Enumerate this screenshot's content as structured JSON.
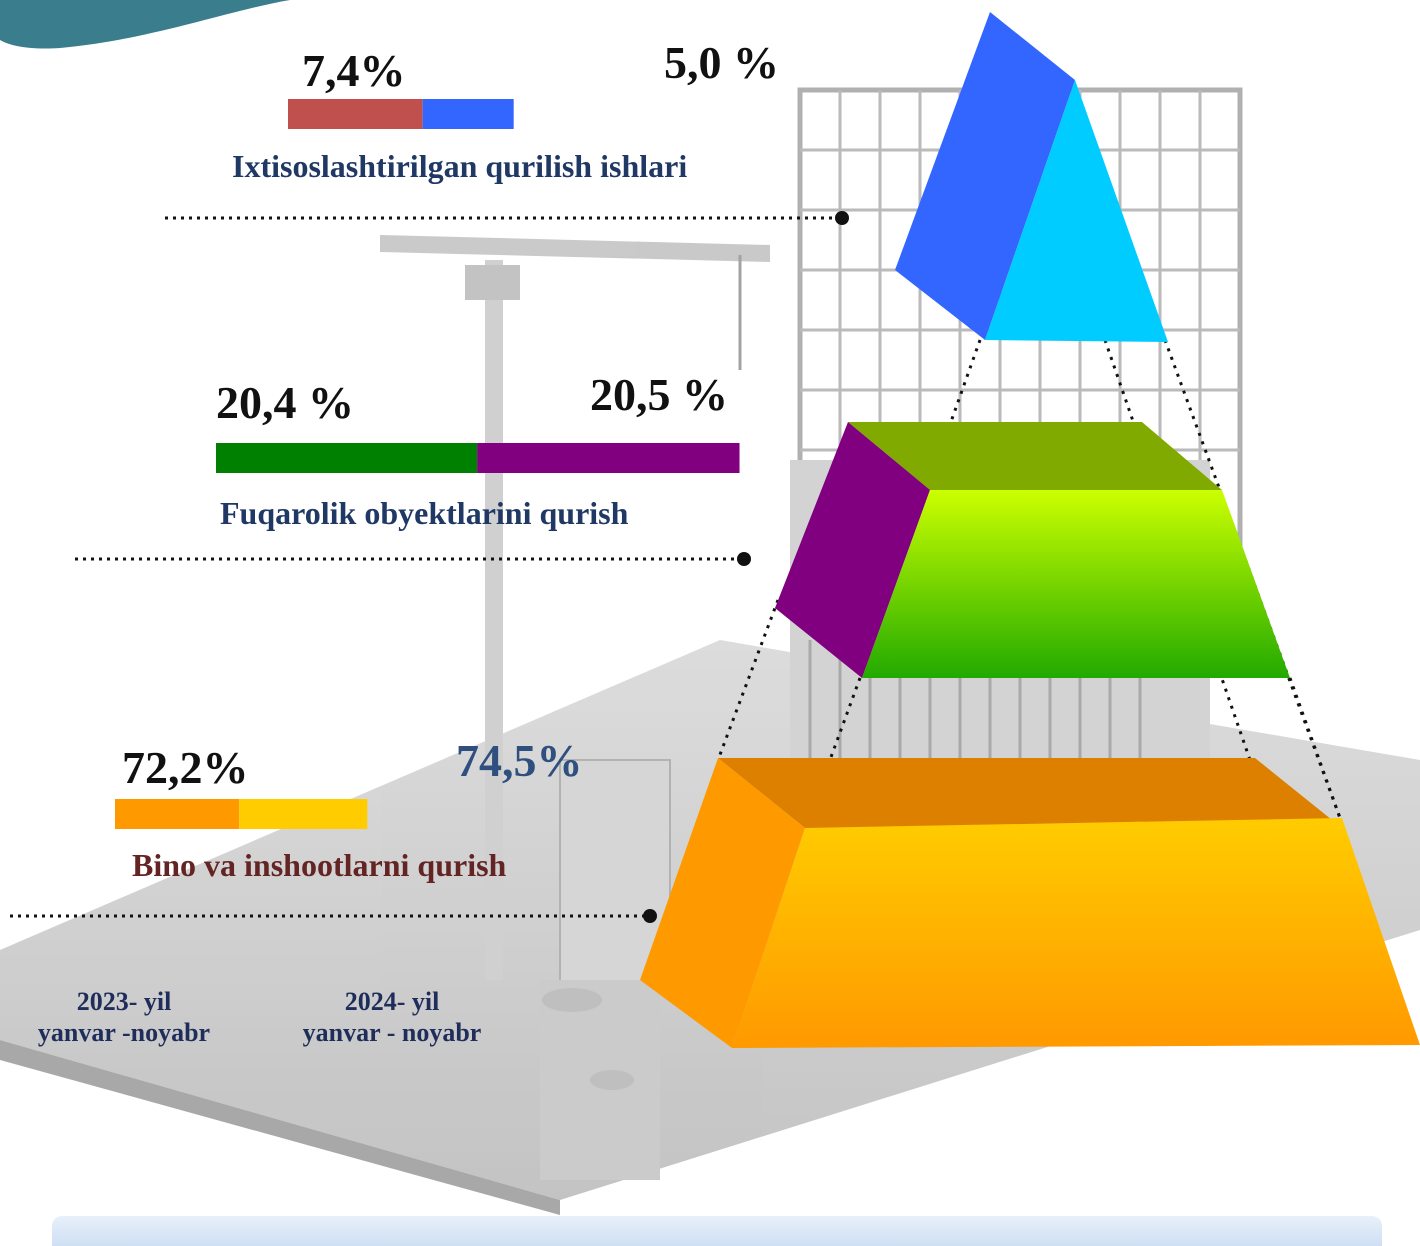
{
  "chart_data": {
    "type": "bar",
    "layout": "stacked-horizontal-pyramid",
    "series": [
      {
        "name": "2023- yil yanvar -noyabr",
        "color": "#c0504d",
        "values": [
          7.4,
          20.4,
          72.2
        ]
      },
      {
        "name": "2024- yil yanvar - noyabr",
        "color": "#3366ff",
        "values": [
          5.0,
          20.5,
          74.5
        ]
      }
    ],
    "categories": [
      {
        "name": "Ixtisoslashtirilgan qurilish ishlari",
        "label_color": "#1f3864",
        "labels": [
          "7,4%",
          "5,0 %"
        ],
        "colors": [
          "#c0504d",
          "#3366ff"
        ]
      },
      {
        "name": "Fuqarolik obyektlarini qurish",
        "label_color": "#1f3864",
        "labels": [
          "20,4 %",
          "20,5 %"
        ],
        "colors": [
          "#008000",
          "#800080"
        ]
      },
      {
        "name": "Bino va inshootlarni qurish",
        "label_color": "#632423",
        "labels": [
          "72,2%",
          "74,5%"
        ],
        "colors": [
          "#ff9900",
          "#ffcc00"
        ]
      }
    ],
    "legend": {
      "items": [
        {
          "line1": "2023- yil",
          "line2": "yanvar -noyabr"
        },
        {
          "line1": "2024- yil",
          "line2": "yanvar - noyabr"
        }
      ],
      "placement": "bottom-left"
    },
    "pyramid_colors": {
      "top": {
        "left": "#3366ff",
        "right": "#00ccff"
      },
      "middle": {
        "side": "#800080",
        "top": "#80aa00",
        "front_top": "#ccff00",
        "front_bottom": "#22aa00"
      },
      "bottom": {
        "side": "#ff9900",
        "top": "#dd8000",
        "front_top": "#ffcc00",
        "front_bottom": "#ff9900"
      }
    }
  }
}
